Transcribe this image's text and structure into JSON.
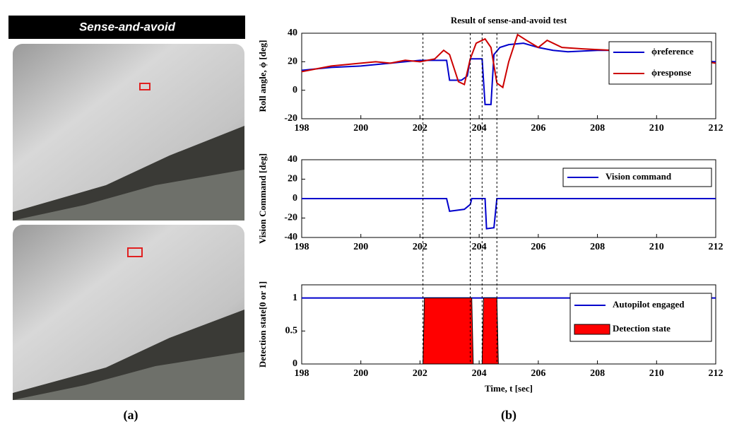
{
  "video_title": "Sense-and-avoid",
  "panel_labels": [
    "(a)",
    "(b)"
  ],
  "vlines": [
    202.1,
    203.7,
    204.1,
    204.6
  ],
  "chart_data": [
    {
      "type": "line",
      "title": "Result of sense-and-avoid test",
      "ylabel": "Roll angle, ϕ [deg]",
      "xlim": [
        198,
        212
      ],
      "xticks": [
        198,
        200,
        202,
        204,
        206,
        208,
        210,
        212
      ],
      "ylim": [
        -20,
        40
      ],
      "yticks": [
        -20,
        0,
        20,
        40
      ],
      "legend": "upper right",
      "series": [
        {
          "name": "ϕreference",
          "color": "#0000cc",
          "x": [
            198,
            199,
            200,
            201,
            202,
            202.9,
            203,
            203.4,
            203.6,
            203.7,
            204,
            204.1,
            204.2,
            204.4,
            204.5,
            204.7,
            205,
            205.5,
            206,
            206.5,
            207,
            208,
            209,
            210,
            211,
            212
          ],
          "values": [
            14,
            16,
            17,
            19,
            21,
            21,
            7,
            7,
            10,
            22,
            22,
            22,
            -10,
            -10,
            25,
            30,
            32,
            33,
            30,
            28,
            27,
            28,
            28,
            24,
            21,
            20
          ]
        },
        {
          "name": "ϕresponse",
          "color": "#cc0000",
          "x": [
            198,
            198.5,
            199,
            199.5,
            200,
            200.5,
            201,
            201.5,
            202,
            202.5,
            202.8,
            203,
            203.3,
            203.5,
            203.7,
            203.9,
            204.2,
            204.4,
            204.6,
            204.8,
            205,
            205.3,
            205.6,
            206,
            206.3,
            206.8,
            207.5,
            208.5,
            209,
            210,
            211,
            212
          ],
          "values": [
            13,
            15,
            17,
            18,
            19,
            20,
            19,
            21,
            20,
            22,
            28,
            25,
            6,
            4,
            22,
            33,
            36,
            30,
            5,
            2,
            20,
            39,
            35,
            30,
            35,
            30,
            29,
            28,
            27,
            25,
            22,
            19
          ]
        }
      ]
    },
    {
      "type": "line",
      "ylabel": "Vision Command [deg]",
      "xlim": [
        198,
        212
      ],
      "xticks": [
        198,
        200,
        202,
        204,
        206,
        208,
        210,
        212
      ],
      "ylim": [
        -40,
        40
      ],
      "yticks": [
        -40,
        -20,
        0,
        20,
        40
      ],
      "legend": "upper right",
      "series": [
        {
          "name": "Vision command",
          "color": "#0000cc",
          "x": [
            198,
            202.9,
            203,
            203.5,
            203.7,
            203.75,
            204.2,
            204.25,
            204.5,
            204.6,
            212
          ],
          "values": [
            0,
            0,
            -13,
            -11,
            -6,
            0,
            0,
            -31,
            -30,
            0,
            0
          ]
        }
      ]
    },
    {
      "type": "line",
      "ylabel": "Detection state[0 or 1]",
      "xlabel": "Time, t [sec]",
      "xlim": [
        198,
        212
      ],
      "xticks": [
        198,
        200,
        202,
        204,
        206,
        208,
        210,
        212
      ],
      "ylim": [
        0,
        1.2
      ],
      "yticks": [
        0,
        0.5,
        1
      ],
      "legend": "upper right",
      "series": [
        {
          "name": "Autopilot engaged",
          "color": "#0000cc",
          "x": [
            198,
            212
          ],
          "values": [
            1,
            1
          ]
        },
        {
          "name": "Detection state",
          "color": "#ff0000",
          "fill": true,
          "x": [
            202.1,
            202.15,
            203.75,
            203.8,
            204.1,
            204.15,
            204.6,
            204.65
          ],
          "values": [
            0,
            1,
            1,
            0,
            0,
            1,
            1,
            0
          ]
        }
      ]
    }
  ]
}
